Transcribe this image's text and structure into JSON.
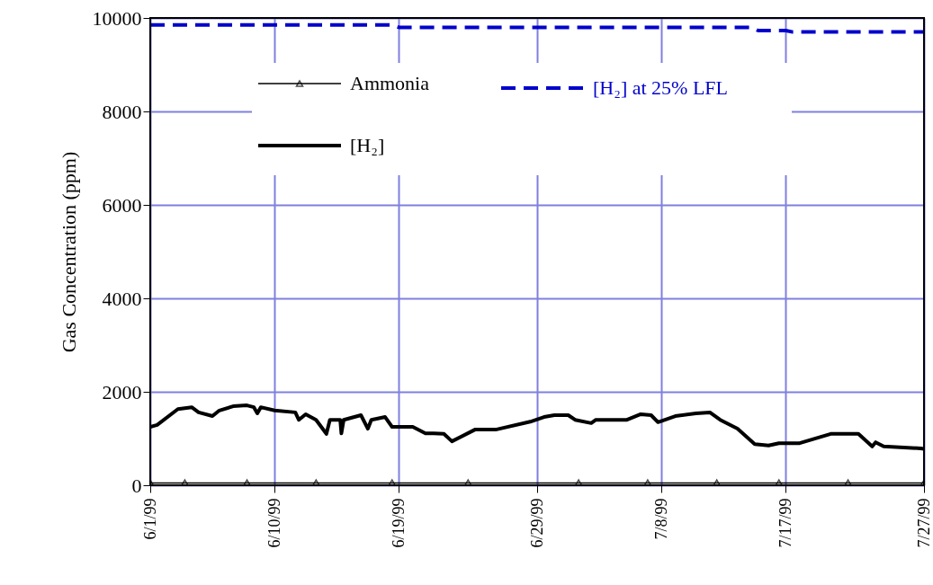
{
  "chart_data": {
    "type": "line",
    "ylabel": "Gas Concentration (ppm)",
    "xlim": [
      "1999-06-01",
      "1999-07-27"
    ],
    "ylim": [
      0,
      10000
    ],
    "yticks": [
      0,
      2000,
      4000,
      6000,
      8000,
      10000
    ],
    "xticks": [
      {
        "value": "1999-06-01",
        "label": "6/1/99"
      },
      {
        "value": "1999-06-10",
        "label": "6/10/99"
      },
      {
        "value": "1999-06-19",
        "label": "6/19/99"
      },
      {
        "value": "1999-06-29",
        "label": "6/29/99"
      },
      {
        "value": "1999-07-08",
        "label": "7/8/99"
      },
      {
        "value": "1999-07-17",
        "label": "7/17/99"
      },
      {
        "value": "1999-07-27",
        "label": "7/27/99"
      }
    ],
    "grid": true,
    "legend": "top",
    "series": [
      {
        "name": "Ammonia",
        "color": "#000000",
        "marker": "triangle",
        "line_style": "solid",
        "x": [
          "1999-06-01T00:00",
          "1999-06-03T12:00",
          "1999-06-08T00:00",
          "1999-06-13T00:00",
          "1999-06-18T12:00",
          "1999-06-24T00:00",
          "1999-07-02T00:00",
          "1999-07-07T00:00",
          "1999-07-12T00:00",
          "1999-07-16T12:00",
          "1999-07-21T12:00",
          "1999-07-27T00:00"
        ],
        "values": [
          50,
          50,
          50,
          50,
          50,
          50,
          50,
          50,
          50,
          50,
          50,
          50
        ]
      },
      {
        "name": "[H₂] at 25% LFL",
        "color": "#0000cc",
        "marker": "none",
        "line_style": "dashed",
        "x": [
          "1999-06-01T00:00",
          "1999-06-18T12:00",
          "1999-06-19T00:00",
          "1999-07-14T12:00",
          "1999-07-15T00:00",
          "1999-07-17T00:00",
          "1999-07-17T12:00",
          "1999-07-27T00:00"
        ],
        "values": [
          9850,
          9850,
          9800,
          9800,
          9730,
          9730,
          9700,
          9700
        ]
      },
      {
        "name": "[H₂]",
        "color": "#000000",
        "marker": "none",
        "line_style": "solid",
        "x": [
          "1999-06-01T00:00",
          "1999-06-01T12:00",
          "1999-06-03T00:00",
          "1999-06-04T00:00",
          "1999-06-04T12:00",
          "1999-06-05T12:00",
          "1999-06-06T00:00",
          "1999-06-07T00:00",
          "1999-06-08T00:00",
          "1999-06-08T12:00",
          "1999-06-08T18:00",
          "1999-06-09T00:00",
          "1999-06-10T00:00",
          "1999-06-11T12:00",
          "1999-06-11T18:00",
          "1999-06-12T06:00",
          "1999-06-13T00:00",
          "1999-06-13T18:00",
          "1999-06-14T00:00",
          "1999-06-14T18:00",
          "1999-06-14T20:00",
          "1999-06-15T00:00",
          "1999-06-16T06:00",
          "1999-06-16T18:00",
          "1999-06-17T00:00",
          "1999-06-18T00:00",
          "1999-06-18T12:00",
          "1999-06-20T00:00",
          "1999-06-20T22:00",
          "1999-06-21T12:00",
          "1999-06-22T06:00",
          "1999-06-22T20:00",
          "1999-06-24T12:00",
          "1999-06-26T00:00",
          "1999-06-28T12:00",
          "1999-06-29T12:00",
          "1999-06-30T06:00",
          "1999-07-01T06:00",
          "1999-07-01T18:00",
          "1999-07-02T22:00",
          "1999-07-03T06:00",
          "1999-07-05T12:00",
          "1999-07-06T12:00",
          "1999-07-07T06:00",
          "1999-07-07T18:00",
          "1999-07-09T00:00",
          "1999-07-10T12:00",
          "1999-07-11T12:00",
          "1999-07-12T06:00",
          "1999-07-13T12:00",
          "1999-07-14T18:00",
          "1999-07-15T18:00",
          "1999-07-16T12:00",
          "1999-07-18T00:00",
          "1999-07-20T06:00",
          "1999-07-22T06:00",
          "1999-07-23T06:00",
          "1999-07-23T12:00",
          "1999-07-24T02:00",
          "1999-07-26T18:00",
          "1999-07-27T00:00"
        ],
        "values": [
          1250,
          1290,
          1630,
          1670,
          1560,
          1480,
          1600,
          1690,
          1710,
          1670,
          1540,
          1670,
          1600,
          1560,
          1400,
          1520,
          1400,
          1100,
          1400,
          1400,
          1110,
          1400,
          1500,
          1210,
          1400,
          1460,
          1250,
          1250,
          1110,
          1110,
          1100,
          940,
          1190,
          1190,
          1360,
          1460,
          1500,
          1500,
          1400,
          1330,
          1400,
          1400,
          1520,
          1500,
          1350,
          1480,
          1540,
          1560,
          1400,
          1210,
          880,
          850,
          900,
          900,
          1100,
          1100,
          830,
          920,
          830,
          790,
          780
        ]
      }
    ]
  }
}
